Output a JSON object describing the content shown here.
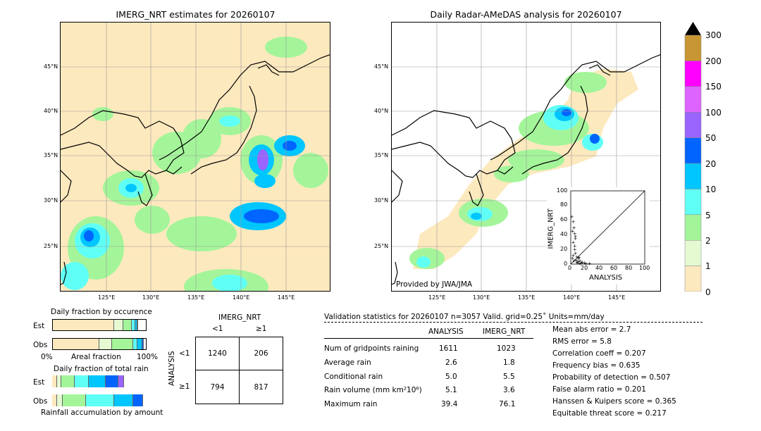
{
  "left_map": {
    "title": "IMERG_NRT estimates for 20260107",
    "lat_ticks": [
      "45°N",
      "40°N",
      "35°N",
      "30°N",
      "25°N"
    ],
    "lon_ticks": [
      "125°E",
      "130°E",
      "135°E",
      "140°E",
      "145°E"
    ]
  },
  "right_map": {
    "title": "Daily Radar-AMeDAS analysis for 20260107",
    "lat_ticks": [
      "45°N",
      "40°N",
      "35°N",
      "30°N",
      "25°N"
    ],
    "lon_ticks": [
      "125°E",
      "130°E",
      "135°E",
      "140°E",
      "145°E"
    ],
    "credit": "Provided by JWA/JMA"
  },
  "colorbar": {
    "levels": [
      "0",
      "1",
      "2",
      "5",
      "10",
      "20",
      "50",
      "100",
      "150",
      "200",
      "300"
    ],
    "colors": [
      "#fde9be",
      "#e6fad2",
      "#a4f59a",
      "#60fff5",
      "#00c6ff",
      "#0064ff",
      "#9a64ff",
      "#dd64ff",
      "#ff00ff",
      "#c89632"
    ]
  },
  "scatter_inset": {
    "xlabel": "ANALYSIS",
    "ylabel": "IMERG_NRT",
    "x_ticks": [
      "0",
      "20",
      "40",
      "60",
      "80",
      "100"
    ],
    "y_ticks": [
      "0",
      "20",
      "40",
      "60",
      "80",
      "100"
    ]
  },
  "occurrence": {
    "title": "Daily fraction by occurence",
    "est_label": "Est",
    "obs_label": "Obs",
    "axis_left": "0%",
    "axis_mid": "Areal fraction",
    "axis_right": "100%",
    "est_fractions": [
      0.66,
      0.1,
      0.09,
      0.04,
      0.02,
      0.01
    ],
    "obs_fractions": [
      0.5,
      0.14,
      0.22,
      0.05,
      0.05,
      0.02
    ]
  },
  "accumulation": {
    "title": "Daily fraction of total rain",
    "est_label": "Est",
    "obs_label": "Obs",
    "footer": "Rainfall accumulation by amount",
    "est_fractions": [
      0.05,
      0.05,
      0.14,
      0.15,
      0.18,
      0.13,
      0.06
    ],
    "obs_fractions": [
      0.05,
      0.06,
      0.25,
      0.3,
      0.2,
      0.1
    ]
  },
  "contingency": {
    "title": "IMERG_NRT",
    "col_lt": "<1",
    "col_ge": "≥1",
    "row_axis": "ANALYSIS",
    "row_lt": "<1",
    "row_ge": "≥1",
    "a": "1240",
    "b": "206",
    "c": "794",
    "d": "817"
  },
  "validation": {
    "header": "Validation statistics for 20260107  n=3057 Valid. grid=0.25˚ Units=mm/day",
    "col_analysis": "ANALYSIS",
    "col_imerg": "IMERG_NRT",
    "rows": [
      {
        "label": "Num of gridpoints raining",
        "analysis": "1611",
        "imerg": "1023"
      },
      {
        "label": "Average rain",
        "analysis": "2.6",
        "imerg": "1.8"
      },
      {
        "label": "Conditional rain",
        "analysis": "5.0",
        "imerg": "5.5"
      },
      {
        "label": "Rain volume (mm km²10⁶)",
        "analysis": "5.1",
        "imerg": "3.6"
      },
      {
        "label": "Maximum rain",
        "analysis": "39.4",
        "imerg": "76.1"
      }
    ],
    "scores": [
      "Mean abs error =    2.7",
      "RMS error =    5.8",
      "Correlation coeff =  0.207",
      "Frequency bias =  0.635",
      "Probability of detection =  0.507",
      "False alarm ratio =  0.201",
      "Hanssen & Kuipers score =  0.365",
      "Equitable threat score =  0.217"
    ]
  },
  "chart_data": [
    {
      "type": "heatmap",
      "title": "IMERG_NRT estimates for 20260107",
      "x_tick_labels": [
        "125°E",
        "130°E",
        "135°E",
        "140°E",
        "145°E"
      ],
      "y_tick_labels": [
        "45°N",
        "40°N",
        "35°N",
        "30°N",
        "25°N"
      ]
    },
    {
      "type": "heatmap",
      "title": "Daily Radar-AMeDAS analysis for 20260107",
      "x_tick_labels": [
        "125°E",
        "130°E",
        "135°E",
        "140°E",
        "145°E"
      ],
      "y_tick_labels": [
        "45°N",
        "40°N",
        "35°N",
        "30°N",
        "25°N"
      ]
    },
    {
      "type": "scatter",
      "xlabel": "ANALYSIS",
      "ylabel": "IMERG_NRT",
      "xlim": [
        0,
        100
      ],
      "ylim": [
        0,
        100
      ],
      "x": [
        1,
        2,
        3,
        5,
        6,
        8,
        10,
        12,
        15,
        18,
        20,
        25,
        2,
        3,
        4,
        5,
        6,
        7,
        8,
        9,
        10,
        11,
        12,
        14,
        3,
        4,
        5,
        6
      ],
      "y": [
        65,
        45,
        30,
        20,
        15,
        10,
        8,
        5,
        3,
        2,
        1,
        1,
        8,
        12,
        5,
        25,
        38,
        6,
        3,
        2,
        4,
        9,
        1,
        2,
        58,
        50,
        42,
        35
      ]
    },
    {
      "type": "table",
      "title": "IMERG_NRT",
      "rows": [
        [
          "1240",
          "206"
        ],
        [
          "794",
          "817"
        ]
      ]
    }
  ]
}
